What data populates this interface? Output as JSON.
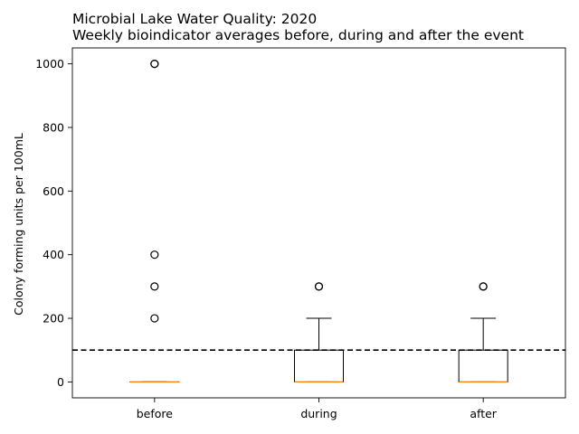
{
  "chart_data": {
    "type": "box",
    "title": "Microbial Lake Water Quality: 2020",
    "subtitle": "Weekly bioindicator averages before, during and after the event",
    "xlabel": "",
    "ylabel": "Colony forming units per 100mL",
    "ylim": [
      -50,
      1050
    ],
    "yticks": [
      0,
      200,
      400,
      600,
      800,
      1000
    ],
    "grid": false,
    "categories": [
      "before",
      "during",
      "after"
    ],
    "boxes": [
      {
        "category": "before",
        "q1": 0,
        "median": 0,
        "q3": 0,
        "whisker_low": 0,
        "whisker_high": 0,
        "outliers": [
          200,
          300,
          400,
          1000,
          1000
        ]
      },
      {
        "category": "during",
        "q1": 0,
        "median": 0,
        "q3": 100,
        "whisker_low": 0,
        "whisker_high": 200,
        "outliers": [
          300,
          300
        ]
      },
      {
        "category": "after",
        "q1": 0,
        "median": 0,
        "q3": 100,
        "whisker_low": 0,
        "whisker_high": 200,
        "outliers": [
          300,
          300
        ]
      }
    ],
    "reference_line": {
      "y": 100,
      "style": "dashed",
      "color": "#000000"
    },
    "colors": {
      "box": "#000000",
      "median": "#ff7f0e",
      "outlier": "#000000"
    }
  }
}
